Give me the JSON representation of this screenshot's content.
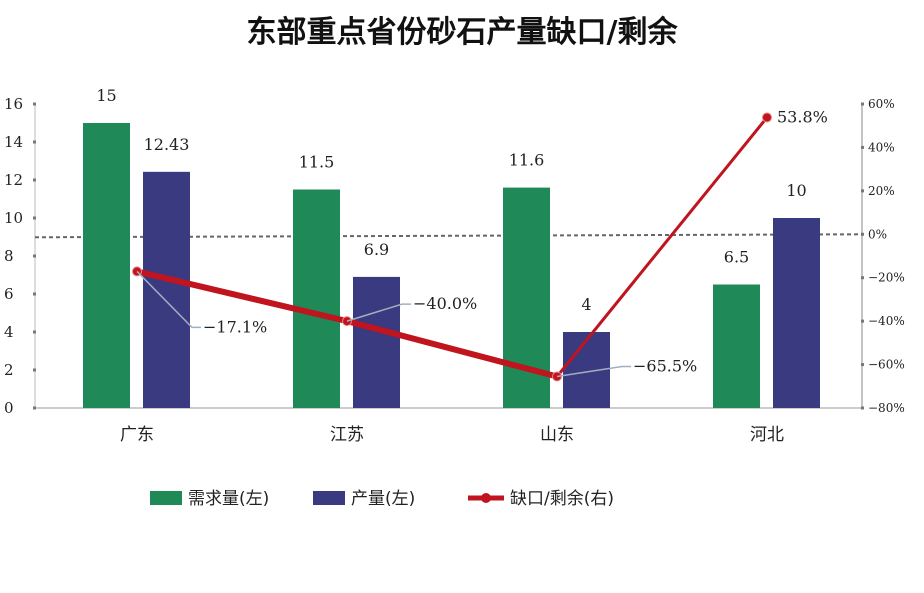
{
  "chart_data": {
    "type": "bar",
    "title": "东部重点省份砂石产量缺口/剩余",
    "categories": [
      "广东",
      "江苏",
      "山东",
      "河北"
    ],
    "series": [
      {
        "name": "需求量(左)",
        "type": "bar",
        "axis": "left",
        "color": "#1f8a57",
        "values": [
          15,
          11.5,
          11.6,
          6.5
        ],
        "labels": [
          "15",
          "11.5",
          "11.6",
          "6.5"
        ]
      },
      {
        "name": "产量(左)",
        "type": "bar",
        "axis": "left",
        "color": "#3a3a80",
        "values": [
          12.43,
          6.9,
          4,
          10
        ],
        "labels": [
          "12.43",
          "6.9",
          "4",
          "10"
        ]
      },
      {
        "name": "缺口/剩余(右)",
        "type": "line",
        "axis": "right",
        "unit": "%",
        "color": "#c0141e",
        "values": [
          -17.1,
          -40.0,
          -65.5,
          53.8
        ],
        "labels": [
          "−17.1%",
          "−40.0%",
          "−65.5%",
          "53.8%"
        ]
      }
    ],
    "left_axis": {
      "ylim": [
        0,
        16
      ],
      "ticks": [
        "0",
        "2",
        "4",
        "6",
        "8",
        "10",
        "12",
        "14",
        "16"
      ]
    },
    "right_axis": {
      "ylim": [
        -80,
        60
      ],
      "ticks": [
        "-80%",
        "-60%",
        "-40%",
        "-20%",
        "0%",
        "20%",
        "40%",
        "60%"
      ]
    },
    "reference_line": {
      "axis": "right",
      "value": 0,
      "style": "dashed"
    },
    "grid": false,
    "legend": "bottom"
  }
}
